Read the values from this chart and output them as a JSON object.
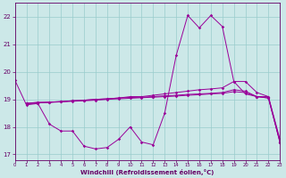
{
  "xlabel": "Windchill (Refroidissement éolien,°C)",
  "xlim": [
    0,
    23
  ],
  "ylim": [
    16.8,
    22.5
  ],
  "yticks": [
    17,
    18,
    19,
    20,
    21,
    22
  ],
  "xticks": [
    0,
    1,
    2,
    3,
    4,
    5,
    6,
    7,
    8,
    9,
    10,
    11,
    12,
    13,
    14,
    15,
    16,
    17,
    18,
    19,
    20,
    21,
    22,
    23
  ],
  "bg_color": "#cce8e8",
  "grid_color": "#99cccc",
  "line_color": "#990099",
  "line1_x": [
    0,
    1,
    2,
    3,
    4,
    5,
    6,
    7,
    8,
    9,
    10,
    11,
    12,
    13,
    14,
    15,
    16,
    17,
    18,
    19,
    20,
    21,
    22,
    23
  ],
  "line1_y": [
    19.7,
    18.8,
    18.85,
    18.1,
    17.85,
    17.85,
    17.3,
    17.2,
    17.25,
    17.55,
    18.0,
    17.45,
    17.35,
    18.5,
    20.6,
    22.05,
    21.6,
    22.05,
    21.65,
    19.65,
    19.2,
    19.1,
    19.1,
    17.55
  ],
  "line2_x": [
    1,
    2,
    3,
    4,
    5,
    6,
    7,
    8,
    9,
    10,
    11,
    12,
    13,
    14,
    15,
    16,
    17,
    18,
    19,
    20,
    21,
    22,
    23
  ],
  "line2_y": [
    18.85,
    18.9,
    18.9,
    18.92,
    18.95,
    18.97,
    19.0,
    19.02,
    19.05,
    19.1,
    19.1,
    19.15,
    19.2,
    19.25,
    19.3,
    19.35,
    19.38,
    19.42,
    19.65,
    19.65,
    19.25,
    19.1,
    17.45
  ],
  "line3_x": [
    1,
    2,
    3,
    4,
    5,
    6,
    7,
    8,
    9,
    10,
    11,
    12,
    13,
    14,
    15,
    16,
    17,
    18,
    19,
    20,
    21,
    22,
    23
  ],
  "line3_y": [
    18.85,
    18.87,
    18.9,
    18.92,
    18.95,
    18.97,
    19.0,
    19.02,
    19.05,
    19.07,
    19.08,
    19.1,
    19.13,
    19.15,
    19.18,
    19.2,
    19.22,
    19.25,
    19.35,
    19.3,
    19.1,
    19.05,
    17.45
  ],
  "line4_x": [
    1,
    2,
    3,
    4,
    5,
    6,
    7,
    8,
    9,
    10,
    11,
    12,
    13,
    14,
    15,
    16,
    17,
    18,
    19,
    20,
    21,
    22,
    23
  ],
  "line4_y": [
    18.85,
    18.87,
    18.89,
    18.91,
    18.93,
    18.95,
    18.97,
    19.0,
    19.02,
    19.04,
    19.06,
    19.08,
    19.1,
    19.12,
    19.15,
    19.17,
    19.2,
    19.22,
    19.28,
    19.25,
    19.1,
    19.05,
    17.45
  ]
}
